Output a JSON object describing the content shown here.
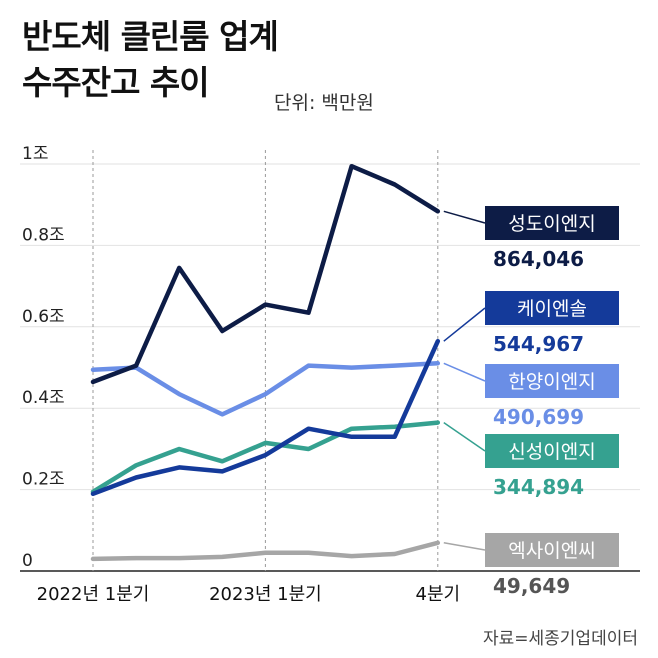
{
  "header": {
    "title_line1": "반도체 클린룸 업계",
    "title_line2": "수주잔고 추이",
    "unit": "단위: 백만원"
  },
  "source": "자료=세종기업데이터",
  "chart_data": {
    "type": "line",
    "title": "반도체 클린룸 업계 수주잔고 추이",
    "unit": "백만원",
    "ylim": [
      0,
      1000000
    ],
    "y_ticks": [
      {
        "value": 0,
        "label": "0"
      },
      {
        "value": 200000,
        "label": "0.2조"
      },
      {
        "value": 400000,
        "label": "0.4조"
      },
      {
        "value": 600000,
        "label": "0.6조"
      },
      {
        "value": 800000,
        "label": "0.8조"
      },
      {
        "value": 1000000,
        "label": "1조"
      }
    ],
    "x": [
      0,
      1,
      2,
      3,
      4,
      5,
      6,
      7,
      8
    ],
    "x_ticks": [
      {
        "index": 0,
        "label": "2022년 1분기"
      },
      {
        "index": 4,
        "label": "2023년 1분기"
      },
      {
        "index": 8,
        "label": "4분기"
      }
    ],
    "grid": "vertical dashed at 2022 1Q, 2023 1Q, 4Q",
    "series": [
      {
        "name": "성도이엔지",
        "final_label": "864,046",
        "color": "#0d1c46",
        "values": [
          445000,
          485000,
          725000,
          570000,
          635000,
          615000,
          975000,
          930000,
          864046
        ]
      },
      {
        "name": "케이엔솔",
        "final_label": "544,967",
        "color": "#143a9a",
        "values": [
          170000,
          210000,
          235000,
          225000,
          265000,
          330000,
          310000,
          310000,
          544967
        ]
      },
      {
        "name": "한양이엔지",
        "final_label": "490,699",
        "color": "#6a8ee6",
        "values": [
          475000,
          480000,
          415000,
          365000,
          415000,
          485000,
          480000,
          485000,
          490699
        ]
      },
      {
        "name": "신성이엔지",
        "final_label": "344,894",
        "color": "#35a190",
        "values": [
          175000,
          240000,
          280000,
          250000,
          295000,
          280000,
          330000,
          335000,
          344894
        ]
      },
      {
        "name": "엑사이엔씨",
        "final_label": "49,649",
        "color": "#a6a6a6",
        "values": [
          10000,
          12000,
          12000,
          15000,
          25000,
          25000,
          17000,
          22000,
          49649
        ]
      }
    ]
  }
}
